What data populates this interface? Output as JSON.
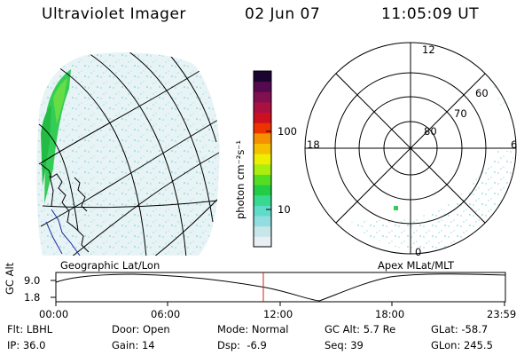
{
  "header": {
    "instrument": "Ultraviolet Imager",
    "date": "02 Jun 07",
    "time": "11:05:09 UT"
  },
  "colorbar": {
    "unit_label": "photon cm⁻²s⁻¹",
    "ticks": [
      "100",
      "10"
    ],
    "colors": [
      "#e8f0f3",
      "#c8e6ea",
      "#92dde0",
      "#5fdcc8",
      "#37d88f",
      "#22cc44",
      "#55dd22",
      "#aaee11",
      "#eeee00",
      "#f5c000",
      "#f59000",
      "#ee3300",
      "#cc1020",
      "#aa1040",
      "#801050",
      "#550a50",
      "#1a0430"
    ]
  },
  "polar_plot": {
    "mlt_labels": {
      "top": "12",
      "bottom": "0",
      "left": "18",
      "right": "6"
    },
    "mlat_labels": [
      "80",
      "70",
      "60"
    ]
  },
  "panel_labels": {
    "left": "Geographic Lat/Lon",
    "right": "Apex MLat/MLT"
  },
  "altitude_strip": {
    "axis_title": "GC Alt",
    "y_ticks": [
      "9.0",
      "1.8"
    ],
    "x_ticks": [
      "00:00",
      "06:00",
      "12:00",
      "18:00",
      "23:59"
    ]
  },
  "info": {
    "filter": {
      "label": "Flt:",
      "value": "LBHL"
    },
    "ip": {
      "label": "IP:",
      "value": "36.0"
    },
    "door": {
      "label": "Door:",
      "value": "Open"
    },
    "gain": {
      "label": "Gain:",
      "value": "14"
    },
    "mode": {
      "label": "Mode:",
      "value": "Normal"
    },
    "dsp": {
      "label": "Dsp:",
      "value": "-6.9"
    },
    "gc_alt": {
      "label": "GC Alt:",
      "value": "5.7 Re"
    },
    "seq": {
      "label": "Seq:",
      "value": "39"
    },
    "glat": {
      "label": "GLat:",
      "value": "-58.7"
    },
    "glon": {
      "label": "GLon:",
      "value": "245.5"
    }
  },
  "accent": {
    "alt_curve": "#000000",
    "time_marker": "#cc2222"
  }
}
